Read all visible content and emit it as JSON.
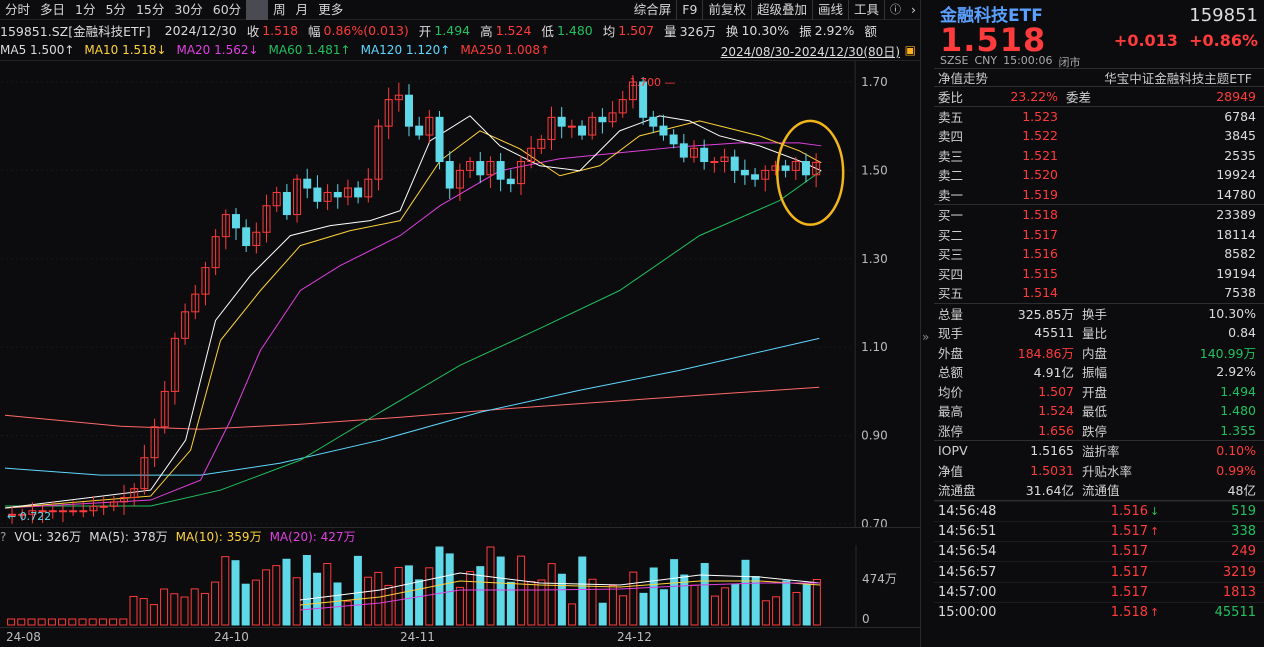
{
  "toolbar": {
    "left": [
      "分时",
      "多日",
      "1分",
      "5分",
      "15分",
      "30分",
      "60分",
      "",
      "周",
      "月",
      "更多"
    ],
    "right": [
      "综合屏",
      "F9",
      "前复权",
      "超级叠加",
      "画线",
      "工具"
    ],
    "icons": [
      "help-icon",
      "chevron-right-icon"
    ]
  },
  "info": {
    "code": "159851.SZ[金融科技ETF]",
    "date": "2024/12/30",
    "close_label": "收",
    "close": "1.518",
    "amp_label": "幅",
    "amp": "0.86%(0.013)",
    "open_label": "开",
    "open": "1.494",
    "high_label": "高",
    "high": "1.524",
    "low_label": "低",
    "low": "1.480",
    "avg_label": "均",
    "avg": "1.507",
    "vol_label": "量",
    "vol": "326万",
    "turn_label": "换",
    "turn": "10.30%",
    "swing_label": "振",
    "swing": "2.92%",
    "amount_label": "额"
  },
  "ma": {
    "ma5": "MA5 1.500↑",
    "ma10": "MA10 1.518↓",
    "ma20": "MA20 1.562↓",
    "ma60": "MA60 1.481↑",
    "ma120": "MA120 1.120↑",
    "ma250": "MA250 1.008↑"
  },
  "range": "2024/08/30-2024/12/30(80日)",
  "chart_data": {
    "type": "candlestick",
    "yticks": [
      "1.70",
      "1.50",
      "1.30",
      "1.10",
      "0.90",
      "0.70"
    ],
    "high_label": "1.700",
    "low_label": "0.722",
    "xlabels": [
      "24-08",
      "24-10",
      "24-11",
      "24-12"
    ],
    "colors": {
      "up": "#ff3b3b",
      "down": "#5fd8e8",
      "ma5": "#ffffff",
      "ma10": "#ffd33a",
      "ma20": "#e040e0",
      "ma60": "#20c060",
      "ma120": "#5fd8ff",
      "ma250": "#ff6a6a"
    }
  },
  "vol": {
    "q": "?",
    "vol": "VOL: 326万",
    "ma5": "MA(5): 378万",
    "ma10": "MA(10): 359万",
    "ma20": "MA(20): 427万",
    "ytick": "474万",
    "zero": "0"
  },
  "right": {
    "name": "金融科技ETF",
    "code": "159851",
    "price": "1.518",
    "chg": "+0.013",
    "pct": "+0.86%",
    "market": "SZSE",
    "cur": "CNY",
    "time": "15:00:06",
    "status": "闭市",
    "nav_label": "净值走势",
    "full": "华宝中证金融科技主题ETF",
    "ratio": {
      "l1": "委比",
      "v1": "23.22%",
      "l2": "委差",
      "v2": "28949"
    },
    "asks": [
      {
        "l": "卖五",
        "p": "1.523",
        "v": "6784"
      },
      {
        "l": "卖四",
        "p": "1.522",
        "v": "3845"
      },
      {
        "l": "卖三",
        "p": "1.521",
        "v": "2535"
      },
      {
        "l": "卖二",
        "p": "1.520",
        "v": "19924"
      },
      {
        "l": "卖一",
        "p": "1.519",
        "v": "14780"
      }
    ],
    "bids": [
      {
        "l": "买一",
        "p": "1.518",
        "v": "23389"
      },
      {
        "l": "买二",
        "p": "1.517",
        "v": "18114"
      },
      {
        "l": "买三",
        "p": "1.516",
        "v": "8582"
      },
      {
        "l": "买四",
        "p": "1.515",
        "v": "19194"
      },
      {
        "l": "买五",
        "p": "1.514",
        "v": "7538"
      }
    ],
    "stats": [
      [
        "总量",
        "325.85万",
        "换手",
        "10.30%"
      ],
      [
        "现手",
        "45511",
        "量比",
        "0.84"
      ],
      [
        "外盘",
        "184.86万",
        "内盘",
        "140.99万"
      ],
      [
        "总额",
        "4.91亿",
        "振幅",
        "2.92%"
      ],
      [
        "均价",
        "1.507",
        "开盘",
        "1.494"
      ],
      [
        "最高",
        "1.524",
        "最低",
        "1.480"
      ],
      [
        "涨停",
        "1.656",
        "跌停",
        "1.355"
      ]
    ],
    "iopv": [
      [
        "IOPV",
        "1.5165",
        "溢折率",
        "0.10%"
      ],
      [
        "净值",
        "1.5031",
        "升贴水率",
        "0.99%"
      ],
      [
        "流通盘",
        "31.64亿",
        "流通值",
        "48亿"
      ]
    ],
    "ticks": [
      {
        "t": "14:56:48",
        "p": "1.516",
        "d": "↓",
        "v": "519"
      },
      {
        "t": "14:56:51",
        "p": "1.517",
        "d": "↑",
        "v": "338"
      },
      {
        "t": "14:56:54",
        "p": "1.517",
        "d": "",
        "v": "249"
      },
      {
        "t": "14:56:57",
        "p": "1.517",
        "d": "",
        "v": "3219"
      },
      {
        "t": "14:57:00",
        "p": "1.517",
        "d": "",
        "v": "1813"
      },
      {
        "t": "15:00:00",
        "p": "1.518",
        "d": "↑",
        "v": "45511"
      }
    ]
  }
}
